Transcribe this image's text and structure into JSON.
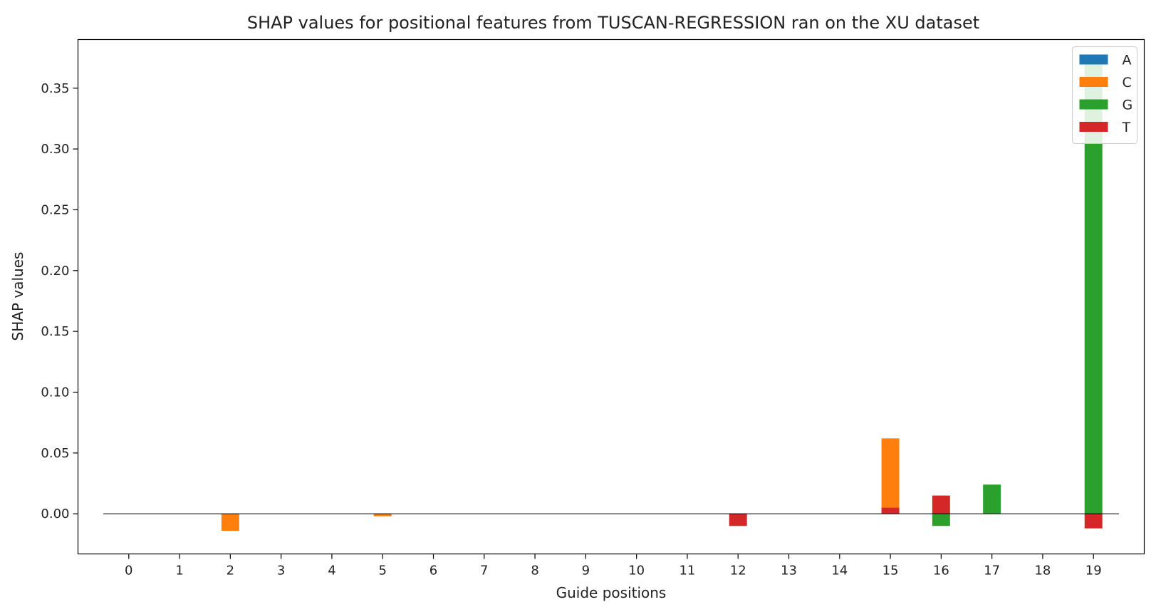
{
  "chart_data": {
    "type": "bar",
    "title": "SHAP values for positional features from TUSCAN-REGRESSION ran on the XU dataset",
    "xlabel": "Guide positions",
    "ylabel": "SHAP values",
    "categories": [
      "0",
      "1",
      "2",
      "3",
      "4",
      "5",
      "6",
      "7",
      "8",
      "9",
      "10",
      "11",
      "12",
      "13",
      "14",
      "15",
      "16",
      "17",
      "18",
      "19"
    ],
    "y_ticks": [
      "0.00",
      "0.05",
      "0.10",
      "0.15",
      "0.20",
      "0.25",
      "0.30",
      "0.35"
    ],
    "ylim": [
      -0.033,
      0.39
    ],
    "xlim": [
      -1.0,
      20.0
    ],
    "bars_overlaid": true,
    "zero_line": true,
    "grid": false,
    "legend_position": "top-right",
    "series": [
      {
        "name": "A",
        "color": "#1f77b4",
        "values": [
          0,
          0,
          0,
          0,
          0,
          0,
          0,
          0,
          0,
          0,
          0,
          0,
          0,
          0,
          0,
          0,
          0,
          0,
          0,
          0
        ]
      },
      {
        "name": "C",
        "color": "#ff7f0e",
        "values": [
          0,
          0,
          -0.014,
          0,
          0,
          -0.002,
          0,
          0,
          0,
          0,
          0,
          0,
          0,
          0,
          0,
          0.062,
          0,
          0,
          0,
          0
        ]
      },
      {
        "name": "G",
        "color": "#2ca02c",
        "values": [
          0,
          0,
          0,
          0,
          0,
          0,
          0,
          0,
          0,
          0,
          0,
          0,
          0,
          0,
          0,
          0,
          -0.01,
          0.024,
          0,
          0.371
        ]
      },
      {
        "name": "T",
        "color": "#d62728",
        "values": [
          0,
          0,
          0,
          0,
          0,
          0,
          0,
          0,
          0,
          0,
          0,
          0,
          -0.01,
          0,
          0,
          0.005,
          0.015,
          0,
          0,
          -0.012
        ]
      }
    ]
  }
}
